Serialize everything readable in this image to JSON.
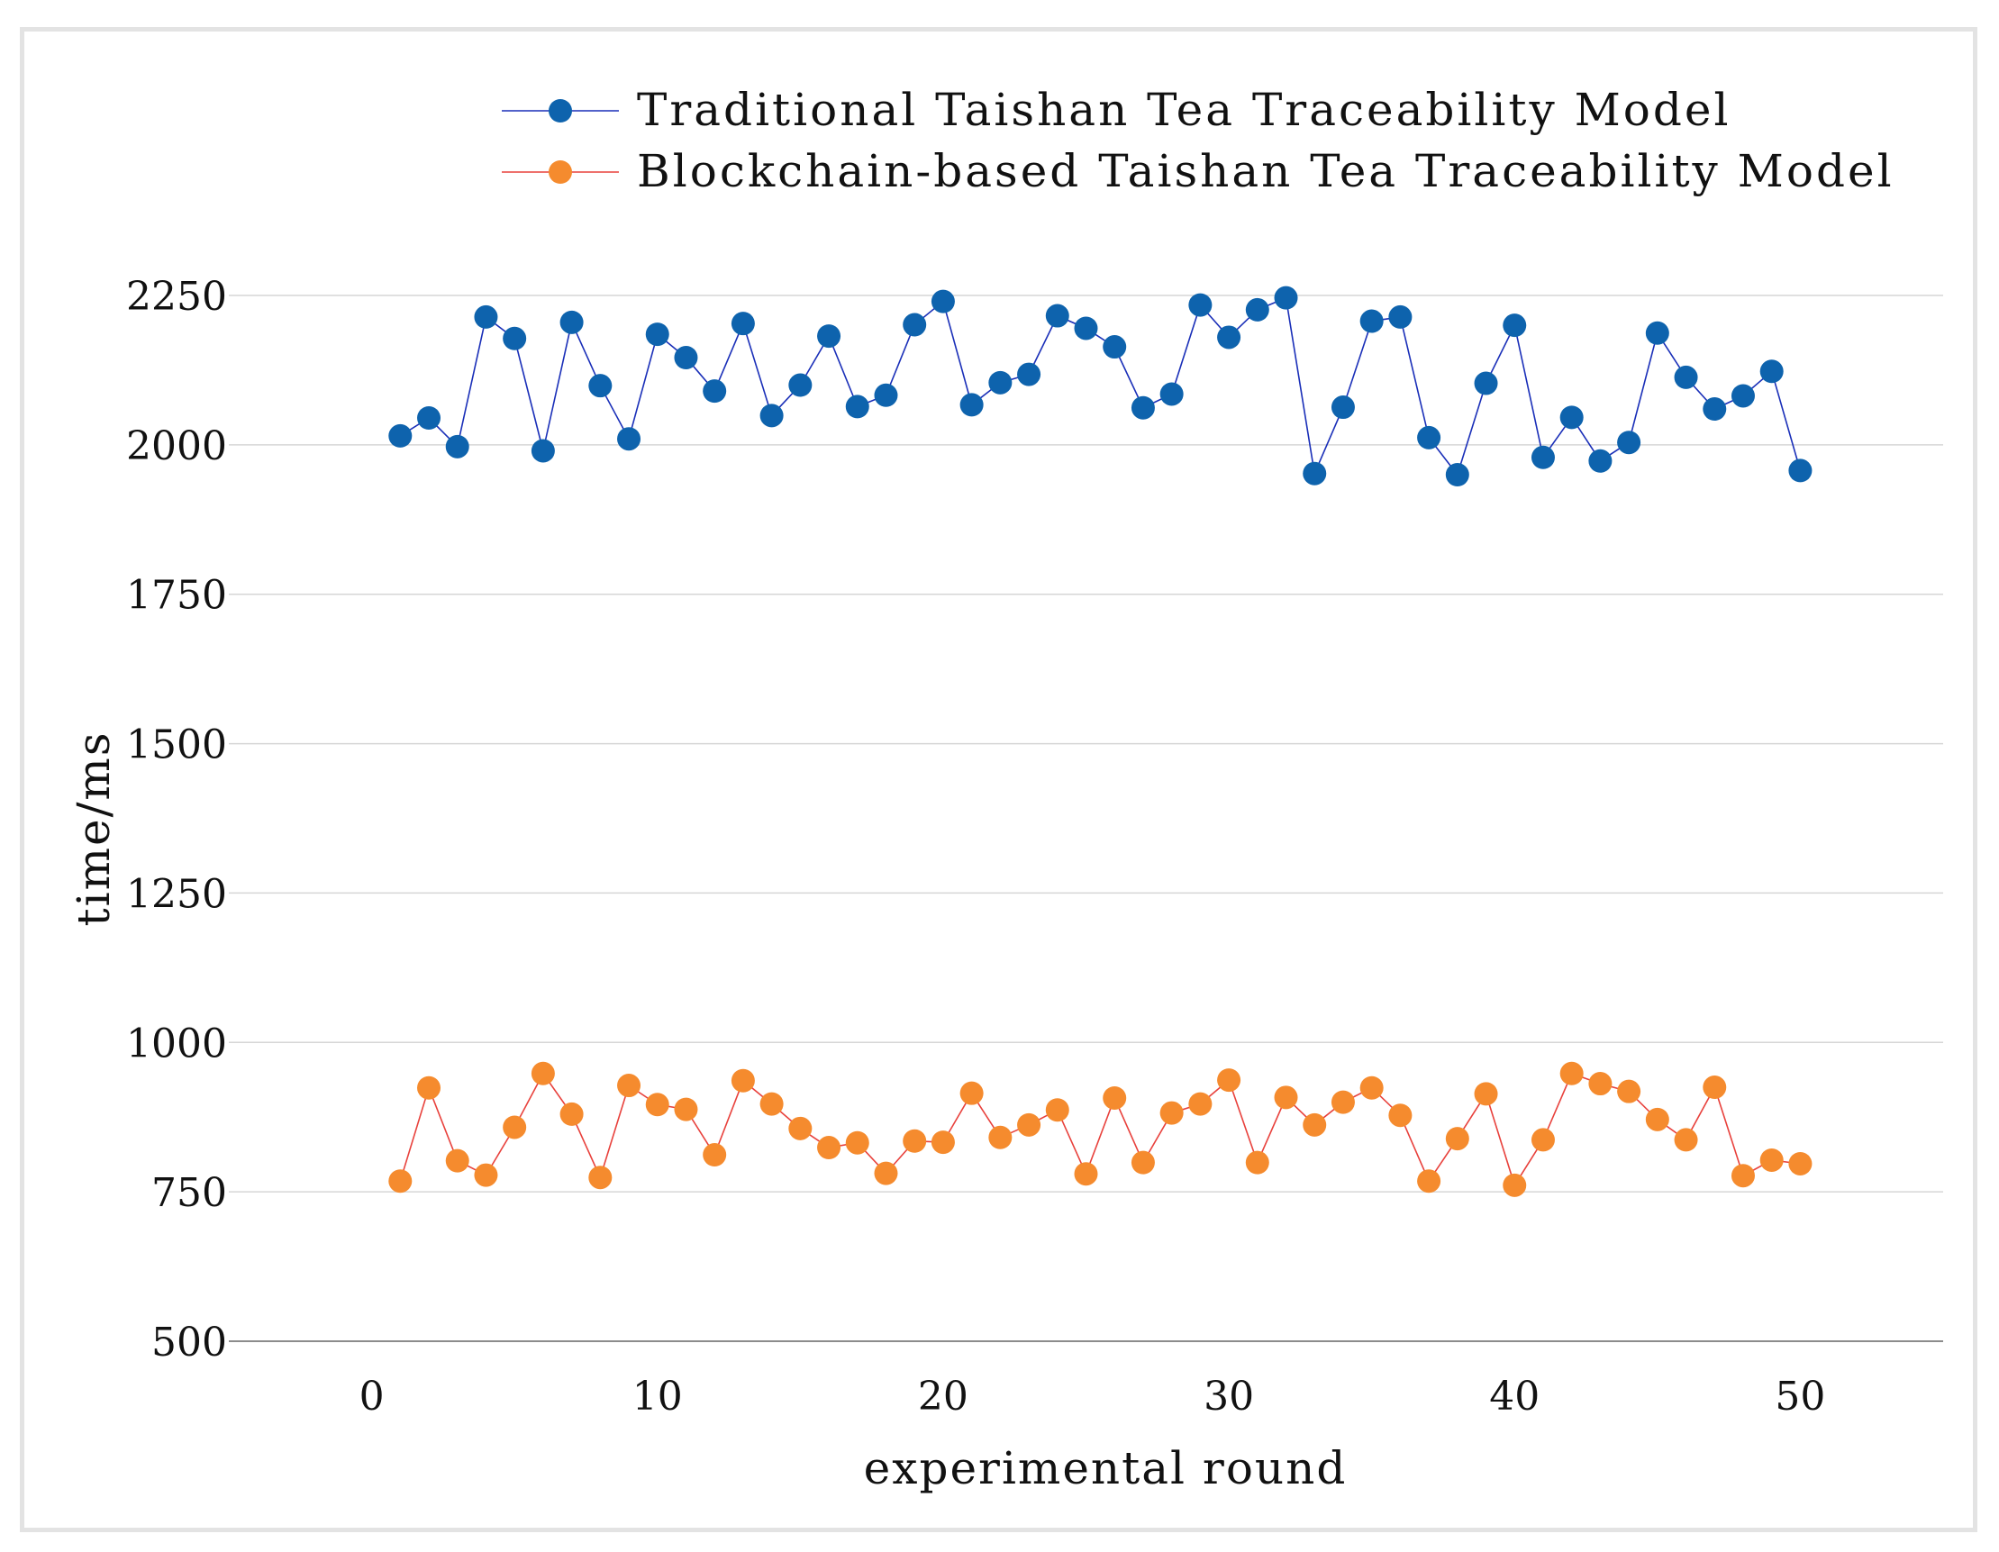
{
  "chart_data": {
    "type": "line",
    "title": "",
    "xlabel": "experimental round",
    "ylabel": "time/ms",
    "xlim": [
      -5,
      55
    ],
    "ylim": [
      500,
      2250
    ],
    "xticks": [
      0,
      10,
      20,
      30,
      40,
      50
    ],
    "yticks": [
      500,
      750,
      1000,
      1250,
      1500,
      1750,
      2000,
      2250
    ],
    "grid": "horizontal",
    "legend_position": "top",
    "series": [
      {
        "name": "Traditional Taishan Tea Traceability Model",
        "color": "#0e63ad",
        "line_color": "#1a2fb8",
        "x": [
          1,
          2,
          3,
          4,
          5,
          6,
          7,
          8,
          9,
          10,
          11,
          12,
          13,
          14,
          15,
          16,
          17,
          18,
          19,
          20,
          21,
          22,
          23,
          24,
          25,
          26,
          27,
          28,
          29,
          30,
          31,
          32,
          33,
          34,
          35,
          36,
          37,
          38,
          39,
          40,
          41,
          42,
          43,
          44,
          45,
          46,
          47,
          48,
          49,
          50
        ],
        "values": [
          2015,
          2045,
          1997,
          2214,
          2178,
          1990,
          2205,
          2099,
          2010,
          2185,
          2146,
          2090,
          2203,
          2049,
          2100,
          2182,
          2064,
          2083,
          2201,
          2240,
          2067,
          2104,
          2118,
          2216,
          2195,
          2164,
          2062,
          2085,
          2234,
          2180,
          2226,
          2246,
          1952,
          2063,
          2207,
          2214,
          2012,
          1950,
          2103,
          2200,
          1979,
          2046,
          1973,
          2004,
          2187,
          2113,
          2060,
          2082,
          2123,
          1957
        ]
      },
      {
        "name": "Blockchain-based Taishan Tea Traceability Model",
        "color": "#f58b2e",
        "line_color": "#e8413c",
        "x": [
          1,
          2,
          3,
          4,
          5,
          6,
          7,
          8,
          9,
          10,
          11,
          12,
          13,
          14,
          15,
          16,
          17,
          18,
          19,
          20,
          21,
          22,
          23,
          24,
          25,
          26,
          27,
          28,
          29,
          30,
          31,
          32,
          33,
          34,
          35,
          36,
          37,
          38,
          39,
          40,
          41,
          42,
          43,
          44,
          45,
          46,
          47,
          48,
          49,
          50
        ],
        "values": [
          768,
          924,
          802,
          778,
          858,
          948,
          880,
          774,
          928,
          896,
          888,
          812,
          936,
          897,
          856,
          824,
          832,
          781,
          835,
          833,
          915,
          841,
          862,
          887,
          780,
          907,
          799,
          882,
          897,
          937,
          799,
          908,
          862,
          900,
          924,
          878,
          768,
          839,
          914,
          761,
          837,
          948,
          931,
          918,
          871,
          837,
          925,
          777,
          803,
          797
        ]
      }
    ]
  }
}
